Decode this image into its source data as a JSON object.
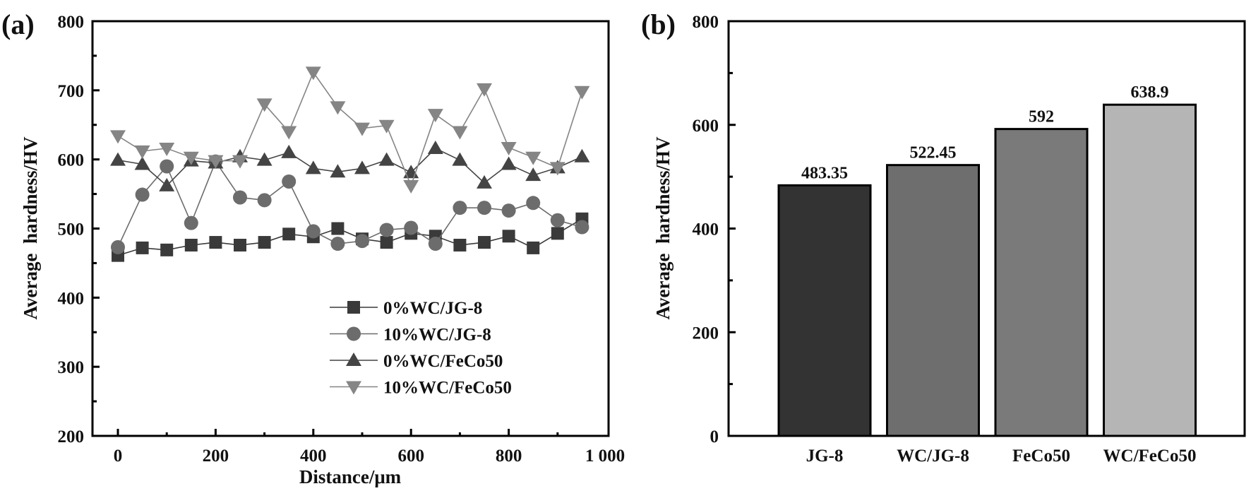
{
  "chart_data": [
    {
      "panel": "(a)",
      "type": "line",
      "title": "",
      "xlabel": "Distance/μm",
      "ylabel": "Average  hardness/HV",
      "xlim": [
        -30,
        1000
      ],
      "ylim": [
        200,
        800
      ],
      "xticks": [
        0,
        200,
        400,
        600,
        800,
        1000
      ],
      "xtick_labels": [
        "0",
        "200",
        "400",
        "600",
        "800",
        "1 000"
      ],
      "yticks": [
        200,
        300,
        400,
        500,
        600,
        700,
        800
      ],
      "ytick_labels": [
        "200",
        "300",
        "400",
        "500",
        "600",
        "700",
        "800"
      ],
      "grid": false,
      "legend_position": "bottom-right",
      "x": [
        0,
        50,
        100,
        150,
        200,
        250,
        300,
        350,
        400,
        450,
        500,
        550,
        600,
        650,
        700,
        750,
        800,
        850,
        900,
        950
      ],
      "series": [
        {
          "name": "0%WC/JG-8",
          "marker": "square",
          "color": "#3a3a3a",
          "values": [
            461,
            472,
            469,
            476,
            480,
            476,
            480,
            492,
            488,
            500,
            485,
            480,
            493,
            489,
            476,
            480,
            489,
            472,
            493,
            514
          ]
        },
        {
          "name": "10%WC/JG-8",
          "marker": "circle",
          "color": "#6c6c6c",
          "values": [
            473,
            549,
            590,
            508,
            597,
            545,
            541,
            568,
            496,
            478,
            482,
            498,
            501,
            478,
            530,
            530,
            526,
            537,
            512,
            502
          ]
        },
        {
          "name": "0%WC/FeCo50",
          "marker": "triangle-up",
          "color": "#444444",
          "values": [
            599,
            593,
            562,
            598,
            595,
            604,
            599,
            610,
            587,
            582,
            587,
            599,
            581,
            616,
            599,
            566,
            593,
            577,
            588,
            604
          ]
        },
        {
          "name": "10%WC/FeCo50",
          "marker": "triangle-down",
          "color": "#858585",
          "values": [
            634,
            612,
            616,
            603,
            598,
            598,
            680,
            640,
            726,
            676,
            645,
            649,
            562,
            665,
            640,
            702,
            617,
            603,
            588,
            698
          ]
        }
      ]
    },
    {
      "panel": "(b)",
      "type": "bar",
      "title": "",
      "xlabel": "",
      "ylabel": "Average  hardness/HV",
      "ylim": [
        0,
        800
      ],
      "yticks": [
        0,
        200,
        400,
        600,
        800
      ],
      "ytick_labels": [
        "0",
        "200",
        "400",
        "600",
        "800"
      ],
      "grid": false,
      "categories": [
        "JG-8",
        "WC/JG-8",
        "FeCo50",
        "WC/FeCo50"
      ],
      "values": [
        483.35,
        522.45,
        592,
        638.9
      ],
      "value_labels": [
        "483.35",
        "522.45",
        "592",
        "638.9"
      ],
      "colors": [
        "#333333",
        "#6e6e6e",
        "#7a7a7a",
        "#b5b5b5"
      ]
    }
  ]
}
